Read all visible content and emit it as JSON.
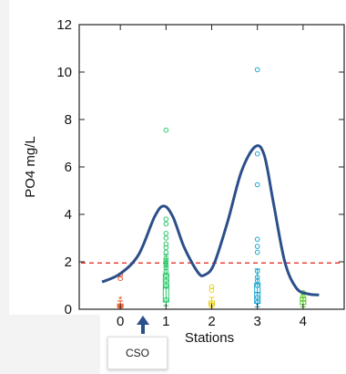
{
  "annotation": {
    "label": "CSO"
  },
  "chart_data": {
    "type": "scatter",
    "xlabel": "Stations",
    "ylabel": "PO4 mg/L",
    "xlim": [
      -0.9,
      4.9
    ],
    "ylim": [
      0,
      12
    ],
    "x_ticks": [
      0,
      1,
      2,
      3,
      4
    ],
    "y_ticks": [
      0,
      2,
      4,
      6,
      8,
      10,
      12
    ],
    "grid": false,
    "threshold": {
      "y": 1.95,
      "color": "#e8322b",
      "style": "dashed"
    },
    "trend_curve": {
      "color": "#2b4f8a",
      "points": [
        [
          -0.4,
          1.15
        ],
        [
          0.0,
          1.5
        ],
        [
          0.4,
          2.3
        ],
        [
          0.75,
          3.9
        ],
        [
          0.95,
          4.35
        ],
        [
          1.15,
          3.9
        ],
        [
          1.4,
          2.6
        ],
        [
          1.7,
          1.55
        ],
        [
          1.85,
          1.45
        ],
        [
          2.05,
          1.9
        ],
        [
          2.35,
          3.7
        ],
        [
          2.65,
          5.8
        ],
        [
          2.95,
          6.85
        ],
        [
          3.15,
          6.5
        ],
        [
          3.35,
          4.5
        ],
        [
          3.6,
          2.0
        ],
        [
          3.85,
          0.9
        ],
        [
          4.1,
          0.65
        ],
        [
          4.35,
          0.6
        ]
      ]
    },
    "groups": [
      {
        "station": 0,
        "color": "#e8501e",
        "box": {
          "q1": 0.1,
          "median": 0.15,
          "q3": 0.22,
          "whisker_low": 0.05,
          "whisker_high": 0.35
        },
        "outliers": [
          1.3,
          1.45
        ],
        "extremes": [
          0.42
        ]
      },
      {
        "station": 1,
        "color": "#2cc86a",
        "box": {
          "q1": 0.3,
          "median": 0.9,
          "q3": 1.5,
          "whisker_low": 0.15,
          "whisker_high": 2.3
        },
        "outliers": [
          0.4,
          1.0,
          1.2,
          1.4,
          1.6,
          1.75,
          1.85,
          1.95,
          2.05,
          2.15,
          2.4,
          2.6,
          2.75,
          3.0,
          3.2,
          3.6,
          3.8,
          7.55
        ]
      },
      {
        "station": 2,
        "color": "#e8d21e",
        "box": {
          "q1": 0.15,
          "median": 0.25,
          "q3": 0.35,
          "whisker_low": 0.08,
          "whisker_high": 0.5
        },
        "outliers": [
          0.2,
          0.8,
          0.95
        ]
      },
      {
        "station": 3,
        "color": "#1ba8d0",
        "box": {
          "q1": 0.25,
          "median": 0.7,
          "q3": 1.1,
          "whisker_low": 0.1,
          "whisker_high": 1.7
        },
        "outliers": [
          0.3,
          0.5,
          1.0,
          1.2,
          1.35,
          1.6,
          2.4,
          2.65,
          2.95,
          5.25,
          6.55,
          10.1
        ]
      },
      {
        "station": 4,
        "color": "#55c81e",
        "box": {
          "q1": 0.2,
          "median": 0.35,
          "q3": 0.5,
          "whisker_low": 0.1,
          "whisker_high": 0.7
        },
        "outliers": [
          0.55,
          0.7
        ]
      }
    ]
  }
}
